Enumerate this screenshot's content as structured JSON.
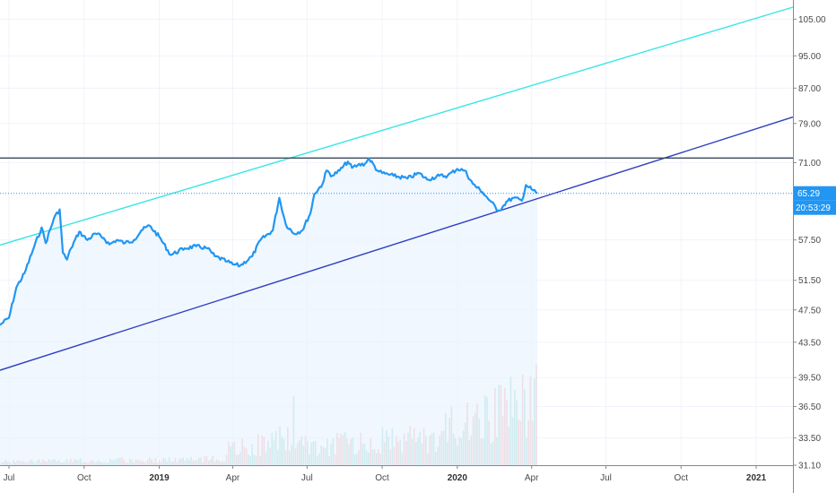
{
  "chart_data": {
    "type": "line",
    "price_scale": "log",
    "y_ticks": [
      "105.00",
      "95.00",
      "87.00",
      "79.00",
      "71.00",
      "65.29",
      "57.50",
      "51.50",
      "47.50",
      "43.50",
      "39.50",
      "36.50",
      "33.50",
      "31.10"
    ],
    "x_ticks": [
      "Jul",
      "Oct",
      "2019",
      "Apr",
      "Jul",
      "Oct",
      "2020",
      "Apr",
      "Jul",
      "Oct",
      "2021"
    ],
    "x_tick_dates": [
      "2018-07-01",
      "2018-10-01",
      "2019-01-01",
      "2019-04-01",
      "2019-07-01",
      "2019-10-01",
      "2020-01-01",
      "2020-04-01",
      "2020-07-01",
      "2020-10-01",
      "2021-01-01"
    ],
    "x_range": [
      "2018-06-20",
      "2021-02-15"
    ],
    "y_range": [
      31.1,
      108.5
    ],
    "last_price": "65.29",
    "countdown": "20:53:29",
    "series": [
      {
        "type": "line",
        "color": "#2196f3",
        "points": [
          [
            "2018-06-20",
            45.6
          ],
          [
            "2018-07-01",
            46.5
          ],
          [
            "2018-07-10",
            50.5
          ],
          [
            "2018-07-20",
            52.5
          ],
          [
            "2018-08-01",
            56.5
          ],
          [
            "2018-08-10",
            59.5
          ],
          [
            "2018-08-15",
            57.0
          ],
          [
            "2018-08-25",
            61.0
          ],
          [
            "2018-09-01",
            62.5
          ],
          [
            "2018-09-05",
            55.5
          ],
          [
            "2018-09-10",
            54.5
          ],
          [
            "2018-09-15",
            56.2
          ],
          [
            "2018-09-25",
            58.8
          ],
          [
            "2018-10-05",
            57.5
          ],
          [
            "2018-10-15",
            58.5
          ],
          [
            "2018-10-25",
            57.8
          ],
          [
            "2018-11-01",
            56.8
          ],
          [
            "2018-11-10",
            57.5
          ],
          [
            "2018-11-20",
            57.0
          ],
          [
            "2018-12-01",
            57.5
          ],
          [
            "2018-12-10",
            59.0
          ],
          [
            "2018-12-20",
            59.8
          ],
          [
            "2019-01-01",
            58.0
          ],
          [
            "2019-01-15",
            55.2
          ],
          [
            "2019-02-01",
            56.2
          ],
          [
            "2019-02-15",
            56.5
          ],
          [
            "2019-03-01",
            56.2
          ],
          [
            "2019-03-10",
            55.0
          ],
          [
            "2019-03-25",
            54.2
          ],
          [
            "2019-04-01",
            53.8
          ],
          [
            "2019-04-10",
            53.6
          ],
          [
            "2019-04-25",
            55.0
          ],
          [
            "2019-05-05",
            57.5
          ],
          [
            "2019-05-20",
            59.0
          ],
          [
            "2019-05-28",
            64.5
          ],
          [
            "2019-06-05",
            60.0
          ],
          [
            "2019-06-15",
            58.5
          ],
          [
            "2019-06-25",
            59.0
          ],
          [
            "2019-07-05",
            61.8
          ],
          [
            "2019-07-10",
            65.2
          ],
          [
            "2019-07-20",
            67.0
          ],
          [
            "2019-07-25",
            69.5
          ],
          [
            "2019-08-01",
            68.5
          ],
          [
            "2019-08-10",
            69.5
          ],
          [
            "2019-08-20",
            71.2
          ],
          [
            "2019-08-25",
            70.0
          ],
          [
            "2019-09-01",
            70.5
          ],
          [
            "2019-09-10",
            70.8
          ],
          [
            "2019-09-15",
            71.8
          ],
          [
            "2019-09-25",
            69.5
          ],
          [
            "2019-10-01",
            69.0
          ],
          [
            "2019-10-15",
            68.5
          ],
          [
            "2019-11-01",
            68.0
          ],
          [
            "2019-11-15",
            69.0
          ],
          [
            "2019-11-25",
            67.8
          ],
          [
            "2019-12-10",
            68.5
          ],
          [
            "2019-12-20",
            68.5
          ],
          [
            "2020-01-01",
            69.8
          ],
          [
            "2020-01-10",
            69.5
          ],
          [
            "2020-01-20",
            67.0
          ],
          [
            "2020-02-01",
            65.5
          ],
          [
            "2020-02-10",
            64.0
          ],
          [
            "2020-02-20",
            62.3
          ],
          [
            "2020-02-25",
            62.8
          ],
          [
            "2020-03-01",
            63.8
          ],
          [
            "2020-03-10",
            64.5
          ],
          [
            "2020-03-20",
            64.0
          ],
          [
            "2020-03-25",
            66.8
          ],
          [
            "2020-04-01",
            66.0
          ],
          [
            "2020-04-08",
            65.29
          ]
        ]
      },
      {
        "type": "volume",
        "color_up": "#86d3c9",
        "color_down": "#f4a3a3"
      }
    ],
    "trend_lines": [
      {
        "color": "#39e6e6",
        "from": [
          "2018-06-20",
          56.7
        ],
        "to": [
          "2021-02-15",
          108.5
        ]
      },
      {
        "color": "#2f3fc0",
        "from": [
          "2018-06-20",
          40.3
        ],
        "to": [
          "2021-02-15",
          80.4
        ]
      },
      {
        "color": "#3a4a5a",
        "from": [
          "2018-06-20",
          71.9
        ],
        "to": [
          "2021-02-15",
          71.9
        ]
      }
    ],
    "price_line": {
      "value": 65.29,
      "color": "#2196f3",
      "style": "dotted"
    }
  }
}
